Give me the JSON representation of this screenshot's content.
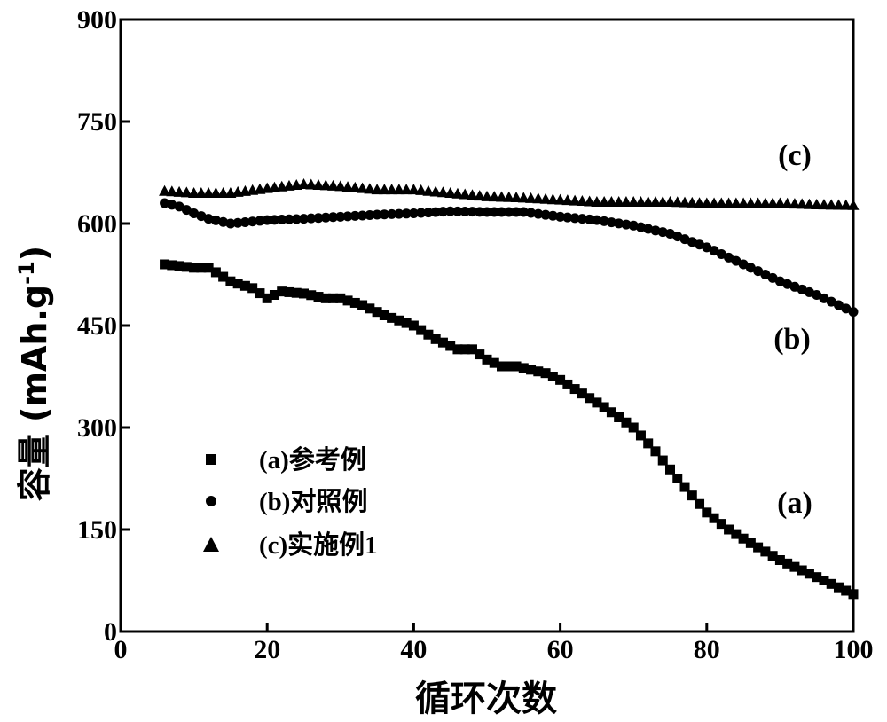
{
  "chart_data": {
    "type": "scatter",
    "xlabel": "循环次数",
    "ylabel": "容量 (mAh.g",
    "ylabel_sup": "-1",
    "ylabel_close": ")",
    "xlim": [
      0,
      100
    ],
    "ylim": [
      0,
      900
    ],
    "x_ticks": [
      0,
      20,
      40,
      60,
      80,
      100
    ],
    "y_ticks": [
      0,
      150,
      300,
      450,
      600,
      750,
      900
    ],
    "grid": false,
    "legend_position": "bottom-left",
    "series": [
      {
        "name": "(a)参考例",
        "marker": "square",
        "annotation": "(a)",
        "x": [
          6,
          10,
          12,
          15,
          18,
          20,
          22,
          25,
          28,
          30,
          33,
          36,
          40,
          43,
          46,
          48,
          50,
          52,
          54,
          56,
          58,
          60,
          63,
          66,
          70,
          73,
          76,
          80,
          83,
          86,
          90,
          93,
          96,
          100
        ],
        "y": [
          540,
          535,
          535,
          515,
          505,
          490,
          500,
          497,
          490,
          490,
          480,
          465,
          450,
          430,
          415,
          415,
          400,
          390,
          390,
          385,
          380,
          370,
          350,
          330,
          300,
          265,
          225,
          175,
          150,
          130,
          105,
          90,
          75,
          55
        ]
      },
      {
        "name": "(b)对照例",
        "marker": "circle",
        "annotation": "(b)",
        "x": [
          6,
          8,
          10,
          12,
          15,
          18,
          20,
          25,
          30,
          35,
          40,
          45,
          50,
          55,
          60,
          65,
          70,
          75,
          80,
          85,
          90,
          95,
          100
        ],
        "y": [
          630,
          625,
          615,
          607,
          600,
          603,
          605,
          607,
          610,
          613,
          615,
          618,
          617,
          617,
          610,
          605,
          597,
          585,
          565,
          540,
          515,
          495,
          470
        ]
      },
      {
        "name": "(c)实施例1",
        "marker": "triangle",
        "annotation": "(c)",
        "x": [
          6,
          10,
          15,
          20,
          25,
          30,
          35,
          40,
          45,
          50,
          55,
          60,
          65,
          70,
          75,
          80,
          85,
          90,
          95,
          100
        ],
        "y": [
          648,
          645,
          645,
          652,
          658,
          655,
          650,
          650,
          645,
          640,
          638,
          635,
          632,
          632,
          632,
          630,
          630,
          630,
          628,
          627
        ]
      }
    ]
  }
}
